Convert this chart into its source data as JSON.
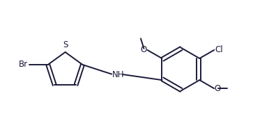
{
  "background": "#ffffff",
  "bond_color": "#1a1a3a",
  "bond_lw": 1.4,
  "font_size": 8.5,
  "xlim": [
    0.0,
    7.2
  ],
  "ylim": [
    0.5,
    3.5
  ],
  "figsize": [
    3.63,
    1.74
  ],
  "dpi": 100
}
